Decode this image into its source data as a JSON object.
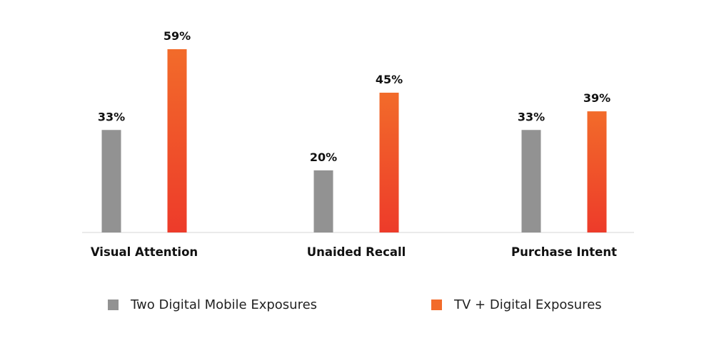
{
  "chart_data": {
    "type": "bar",
    "categories": [
      "Visual Attention",
      "Unaided Recall",
      "Purchase Intent"
    ],
    "series": [
      {
        "name": "Two Digital Mobile Exposures",
        "values": [
          33,
          20,
          33
        ],
        "labels": [
          "33%",
          "20%",
          "33%"
        ]
      },
      {
        "name": "TV + Digital Exposures",
        "values": [
          59,
          45,
          39
        ],
        "labels": [
          "59%",
          "45%",
          "39%"
        ]
      }
    ],
    "title": "",
    "xlabel": "",
    "ylabel": "",
    "ylim": [
      0,
      59
    ],
    "grid": false,
    "legend_position": "bottom"
  },
  "colors": {
    "series_0": "#929292",
    "series_1_top": "#f26b2a",
    "series_1_bottom": "#ed3b2a",
    "baseline": "#e4e4e4"
  }
}
